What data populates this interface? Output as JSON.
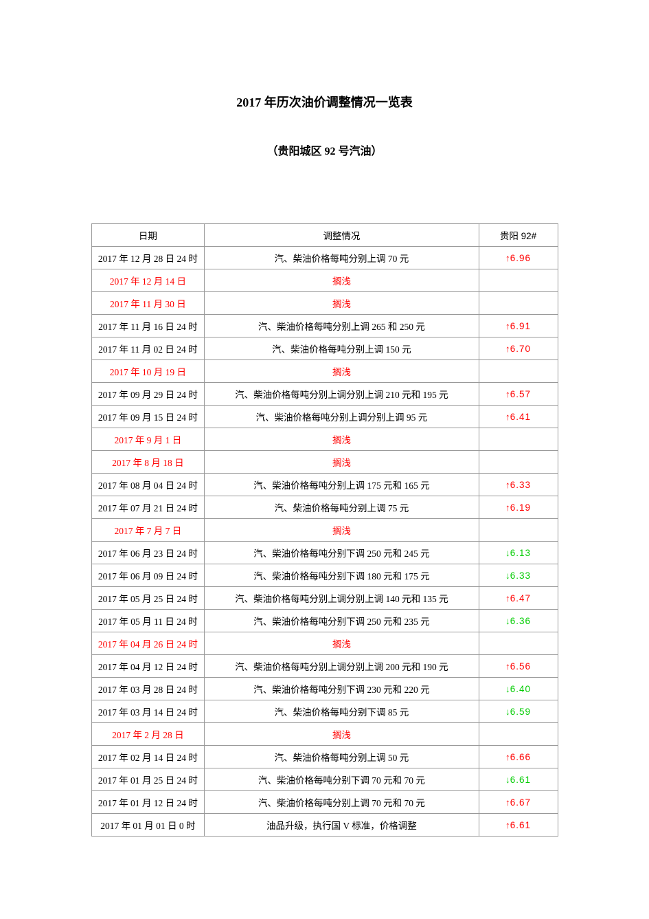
{
  "title": "2017 年历次油价调整情况一览表",
  "subtitle": "（贵阳城区 92 号汽油）",
  "table": {
    "headers": {
      "date": "日期",
      "description": "调整情况",
      "price": "贵阳 92#"
    },
    "rows": [
      {
        "date": "2017 年 12 月 28 日 24 时",
        "date_red": false,
        "desc": "汽、柴油价格每吨分别上调 70 元",
        "desc_red": false,
        "price": "6.96",
        "direction": "up"
      },
      {
        "date": "2017 年 12 月 14 日",
        "date_red": true,
        "desc": "搁浅",
        "desc_red": true,
        "price": "",
        "direction": ""
      },
      {
        "date": "2017 年 11 月 30 日",
        "date_red": true,
        "desc": "搁浅",
        "desc_red": true,
        "price": "",
        "direction": ""
      },
      {
        "date": "2017 年 11 月 16 日 24 时",
        "date_red": false,
        "desc": "汽、柴油价格每吨分别上调 265 和 250 元",
        "desc_red": false,
        "price": "6.91",
        "direction": "up"
      },
      {
        "date": "2017 年 11 月 02 日 24 时",
        "date_red": false,
        "desc": "汽、柴油价格每吨分别上调 150 元",
        "desc_red": false,
        "price": "6.70",
        "direction": "up"
      },
      {
        "date": "2017 年 10 月 19 日",
        "date_red": true,
        "desc": "搁浅",
        "desc_red": true,
        "price": "",
        "direction": ""
      },
      {
        "date": "2017 年 09 月 29 日 24 时",
        "date_red": false,
        "desc": "汽、柴油价格每吨分别上调分别上调 210 元和 195 元",
        "desc_red": false,
        "price": "6.57",
        "direction": "up"
      },
      {
        "date": "2017 年 09 月 15 日 24 时",
        "date_red": false,
        "desc": "汽、柴油价格每吨分别上调分别上调 95 元",
        "desc_red": false,
        "price": "6.41",
        "direction": "up"
      },
      {
        "date": "2017 年 9 月 1 日",
        "date_red": true,
        "desc": "搁浅",
        "desc_red": true,
        "price": "",
        "direction": ""
      },
      {
        "date": "2017 年 8 月 18 日",
        "date_red": true,
        "desc": "搁浅",
        "desc_red": true,
        "price": "",
        "direction": ""
      },
      {
        "date": "2017 年 08 月 04 日 24 时",
        "date_red": false,
        "desc": "汽、柴油价格每吨分别上调 175 元和 165 元",
        "desc_red": false,
        "price": "6.33",
        "direction": "up"
      },
      {
        "date": "2017 年 07 月 21 日 24 时",
        "date_red": false,
        "desc": "汽、柴油价格每吨分别上调 75 元",
        "desc_red": false,
        "price": "6.19",
        "direction": "up"
      },
      {
        "date": "2017 年 7 月 7 日",
        "date_red": true,
        "desc": "搁浅",
        "desc_red": true,
        "price": "",
        "direction": ""
      },
      {
        "date": "2017 年 06 月 23 日 24 时",
        "date_red": false,
        "desc": "汽、柴油价格每吨分别下调 250 元和 245 元",
        "desc_red": false,
        "price": "6.13",
        "direction": "down"
      },
      {
        "date": "2017 年 06 月 09 日 24 时",
        "date_red": false,
        "desc": "汽、柴油价格每吨分别下调 180 元和 175 元",
        "desc_red": false,
        "price": "6.33",
        "direction": "down"
      },
      {
        "date": "2017 年 05 月 25 日 24 时",
        "date_red": false,
        "desc": "汽、柴油价格每吨分别上调分别上调 140 元和 135 元",
        "desc_red": false,
        "price": "6.47",
        "direction": "up"
      },
      {
        "date": "2017 年 05 月 11 日 24 时",
        "date_red": false,
        "desc": "汽、柴油价格每吨分别下调 250 元和 235 元",
        "desc_red": false,
        "price": "6.36",
        "direction": "down"
      },
      {
        "date": "2017 年 04 月 26 日 24 时",
        "date_red": true,
        "desc": "搁浅",
        "desc_red": true,
        "price": "",
        "direction": ""
      },
      {
        "date": "2017 年 04 月 12 日 24 时",
        "date_red": false,
        "desc": "汽、柴油价格每吨分别上调分别上调 200 元和 190 元",
        "desc_red": false,
        "price": "6.56",
        "direction": "up"
      },
      {
        "date": "2017 年 03 月 28 日 24 时",
        "date_red": false,
        "desc": "汽、柴油价格每吨分别下调 230 元和 220 元",
        "desc_red": false,
        "price": "6.40",
        "direction": "down"
      },
      {
        "date": "2017 年 03 月 14 日 24 时",
        "date_red": false,
        "desc": "汽、柴油价格每吨分别下调 85 元",
        "desc_red": false,
        "price": "6.59",
        "direction": "down"
      },
      {
        "date": "2017 年 2 月 28 日",
        "date_red": true,
        "desc": "搁浅",
        "desc_red": true,
        "price": "",
        "direction": ""
      },
      {
        "date": "2017 年 02 月 14 日 24 时",
        "date_red": false,
        "desc": "汽、柴油价格每吨分别上调 50 元",
        "desc_red": false,
        "price": "6.66",
        "direction": "up"
      },
      {
        "date": "2017 年 01 月 25 日 24 时",
        "date_red": false,
        "desc": "汽、柴油价格每吨分别下调 70 元和 70 元",
        "desc_red": false,
        "price": "6.61",
        "direction": "down"
      },
      {
        "date": "2017 年 01 月 12 日 24 时",
        "date_red": false,
        "desc": "汽、柴油价格每吨分别上调 70 元和 70 元",
        "desc_red": false,
        "price": "6.67",
        "direction": "up"
      },
      {
        "date": "2017 年 01 月 01 日 0 时",
        "date_red": false,
        "desc": "油品升级，执行国 V 标准，价格调整",
        "desc_red": false,
        "price": "6.61",
        "direction": "up"
      }
    ]
  },
  "colors": {
    "text_black": "#000000",
    "text_red": "#ff0000",
    "arrow_up": "#ff0000",
    "arrow_down": "#00cc00",
    "border": "#999999",
    "background": "#ffffff"
  }
}
